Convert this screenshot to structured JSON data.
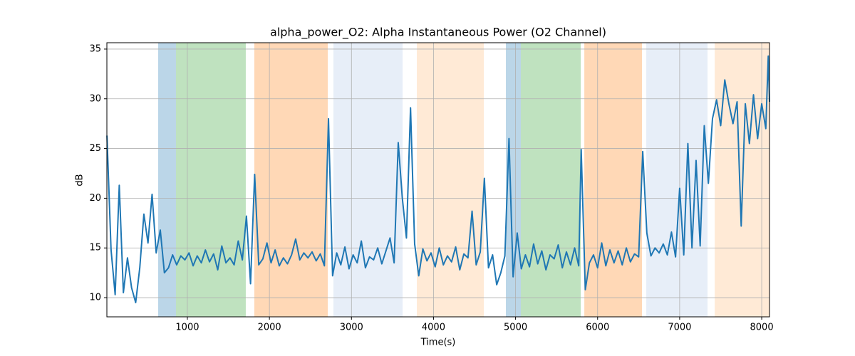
{
  "chart_data": {
    "type": "line",
    "title": "alpha_power_O2: Alpha Instantaneous Power (O2 Channel)",
    "xlabel": "Time(s)",
    "ylabel": "dB",
    "color": "#1f77b4",
    "xlim": [
      19,
      8095
    ],
    "ylim": [
      8.07,
      35.64
    ],
    "xticks": [
      1000,
      2000,
      3000,
      4000,
      5000,
      6000,
      7000,
      8000
    ],
    "yticks": [
      10,
      15,
      20,
      25,
      30,
      35
    ],
    "grid": true,
    "spans": [
      {
        "x0": 644,
        "x1": 861,
        "color": "#1f77b4",
        "alpha": 0.3
      },
      {
        "x0": 861,
        "x1": 1712,
        "color": "#2ca02c",
        "alpha": 0.3
      },
      {
        "x0": 1816,
        "x1": 2711,
        "color": "#ff7f0e",
        "alpha": 0.3
      },
      {
        "x0": 2780,
        "x1": 3623,
        "color": "#aec7e8",
        "alpha": 0.3
      },
      {
        "x0": 3797,
        "x1": 4613,
        "color": "#ffbb78",
        "alpha": 0.3
      },
      {
        "x0": 4882,
        "x1": 5064,
        "color": "#1f77b4",
        "alpha": 0.3
      },
      {
        "x0": 5064,
        "x1": 5794,
        "color": "#2ca02c",
        "alpha": 0.3
      },
      {
        "x0": 5838,
        "x1": 6541,
        "color": "#ff7f0e",
        "alpha": 0.3
      },
      {
        "x0": 6593,
        "x1": 7340,
        "color": "#aec7e8",
        "alpha": 0.3
      },
      {
        "x0": 7427,
        "x1": 8095,
        "color": "#ffbb78",
        "alpha": 0.3
      }
    ],
    "x": [
      20,
      70,
      120,
      170,
      220,
      270,
      320,
      370,
      420,
      470,
      520,
      570,
      620,
      670,
      720,
      770,
      820,
      870,
      920,
      970,
      1020,
      1070,
      1120,
      1170,
      1220,
      1270,
      1320,
      1370,
      1420,
      1470,
      1520,
      1570,
      1620,
      1670,
      1720,
      1770,
      1820,
      1870,
      1920,
      1970,
      2020,
      2070,
      2120,
      2170,
      2220,
      2270,
      2320,
      2370,
      2420,
      2470,
      2520,
      2570,
      2620,
      2670,
      2720,
      2770,
      2820,
      2870,
      2920,
      2970,
      3020,
      3070,
      3120,
      3170,
      3220,
      3270,
      3320,
      3370,
      3420,
      3470,
      3520,
      3570,
      3620,
      3670,
      3720,
      3770,
      3820,
      3870,
      3920,
      3970,
      4020,
      4070,
      4120,
      4170,
      4220,
      4270,
      4320,
      4370,
      4420,
      4470,
      4520,
      4570,
      4620,
      4670,
      4720,
      4770,
      4820,
      4870,
      4920,
      4970,
      5020,
      5070,
      5120,
      5170,
      5220,
      5270,
      5320,
      5370,
      5420,
      5470,
      5520,
      5570,
      5620,
      5670,
      5720,
      5770,
      5800,
      5850,
      5900,
      5950,
      6000,
      6050,
      6100,
      6150,
      6200,
      6250,
      6300,
      6350,
      6400,
      6450,
      6500,
      6550,
      6600,
      6650,
      6700,
      6750,
      6800,
      6850,
      6900,
      6950,
      7000,
      7050,
      7100,
      7150,
      7200,
      7250,
      7300,
      7350,
      7400,
      7450,
      7500,
      7550,
      7600,
      7650,
      7700,
      7750,
      7800,
      7850,
      7900,
      7950,
      8000,
      8050,
      8080,
      8095
    ],
    "values": [
      26.3,
      14.8,
      10.3,
      21.3,
      10.5,
      14,
      11,
      9.5,
      13,
      18.4,
      15.5,
      20.4,
      14.5,
      16.8,
      12.5,
      13,
      14.3,
      13.3,
      14.2,
      13.8,
      14.5,
      13.2,
      14.2,
      13.5,
      14.8,
      13.6,
      14.4,
      12.8,
      15.2,
      13.5,
      14.0,
      13.3,
      15.7,
      13.8,
      18.2,
      11.4,
      22.4,
      13.3,
      13.9,
      15.5,
      13.5,
      14.8,
      13.2,
      14.0,
      13.4,
      14.3,
      15.9,
      13.8,
      14.5,
      14.0,
      14.6,
      13.7,
      14.4,
      13.2,
      28.0,
      12.2,
      14.5,
      13.3,
      15.1,
      12.9,
      14.3,
      13.5,
      15.7,
      13.0,
      14.1,
      13.8,
      15.0,
      13.4,
      14.7,
      16.0,
      13.5,
      25.6,
      20.0,
      16.0,
      29.1,
      15.4,
      12.2,
      14.9,
      13.7,
      14.5,
      13.1,
      15.0,
      13.3,
      14.2,
      13.6,
      15.1,
      12.8,
      14.4,
      14.0,
      18.7,
      13.3,
      14.6,
      22.0,
      13.0,
      14.3,
      11.3,
      12.5,
      14.2,
      26.0,
      12.1,
      16.5,
      12.9,
      14.3,
      13.1,
      15.4,
      13.4,
      14.7,
      12.8,
      14.3,
      13.9,
      15.3,
      13.0,
      14.6,
      13.3,
      15.0,
      13.2,
      24.9,
      10.8,
      13.5,
      14.3,
      13.0,
      15.5,
      13.2,
      14.8,
      13.5,
      14.7,
      13.3,
      15.0,
      13.6,
      14.4,
      14.1,
      24.7,
      16.5,
      14.2,
      15.0,
      14.5,
      15.4,
      14.3,
      16.6,
      14.1,
      21.0,
      14.3,
      25.5,
      15.0,
      23.8,
      15.2,
      27.3,
      21.5,
      28.0,
      29.9,
      27.3,
      31.9,
      29.5,
      27.5,
      29.7,
      17.2,
      29.5,
      25.5,
      30.4,
      26.0,
      29.5,
      27.0,
      34.3,
      29.7
    ]
  }
}
